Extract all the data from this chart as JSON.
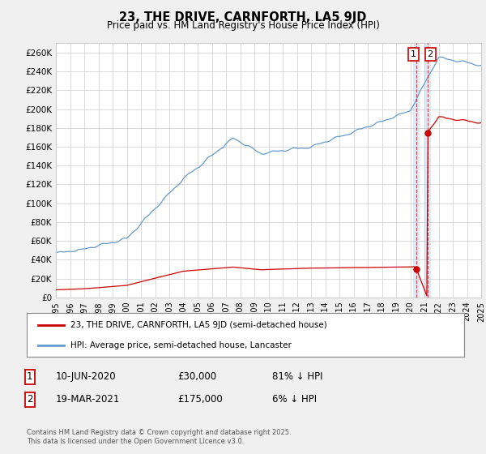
{
  "title": "23, THE DRIVE, CARNFORTH, LA5 9JD",
  "subtitle": "Price paid vs. HM Land Registry's House Price Index (HPI)",
  "ylabel_ticks": [
    "£0",
    "£20K",
    "£40K",
    "£60K",
    "£80K",
    "£100K",
    "£120K",
    "£140K",
    "£160K",
    "£180K",
    "£200K",
    "£220K",
    "£240K",
    "£260K"
  ],
  "ytick_values": [
    0,
    20000,
    40000,
    60000,
    80000,
    100000,
    120000,
    140000,
    160000,
    180000,
    200000,
    220000,
    240000,
    260000
  ],
  "xlim": [
    1995,
    2025
  ],
  "ylim": [
    0,
    270000
  ],
  "line1_color": "#cc0000",
  "line2_color": "#6699cc",
  "sale1_date_x": 2020.44,
  "sale1_price": 30000,
  "sale2_date_x": 2021.21,
  "sale2_price": 175000,
  "legend1": "23, THE DRIVE, CARNFORTH, LA5 9JD (semi-detached house)",
  "legend2": "HPI: Average price, semi-detached house, Lancaster",
  "table_row1_num": "1",
  "table_row1_date": "10-JUN-2020",
  "table_row1_price": "£30,000",
  "table_row1_hpi": "81% ↓ HPI",
  "table_row2_num": "2",
  "table_row2_date": "19-MAR-2021",
  "table_row2_price": "£175,000",
  "table_row2_hpi": "6% ↓ HPI",
  "copyright": "Contains HM Land Registry data © Crown copyright and database right 2025.\nThis data is licensed under the Open Government Licence v3.0.",
  "background_color": "#f0f0f0",
  "plot_bg_color": "#ffffff"
}
